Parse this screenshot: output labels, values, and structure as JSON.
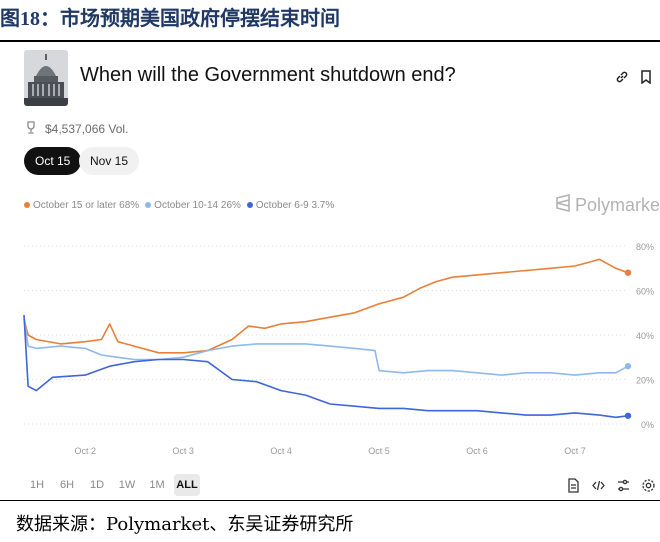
{
  "figure": {
    "title_prefix": "图",
    "title_number": "18",
    "title_rest": "：市场预期美国政府停摆结束时间"
  },
  "source": "数据来源：Polymarket、东吴证券研究所",
  "market": {
    "question": "When will the Government shutdown end?",
    "volume": "$4,537,066 Vol."
  },
  "date_buttons": [
    "Oct 15",
    "Nov 15"
  ],
  "brand": "Polymarket",
  "range_buttons": [
    "1H",
    "6H",
    "1D",
    "1W",
    "1M",
    "ALL"
  ],
  "icons": {
    "top": [
      "link-icon",
      "bookmark-icon"
    ],
    "tools": [
      "document-icon",
      "code-icon",
      "sliders-icon",
      "settings-icon"
    ],
    "volume": "trophy-icon"
  },
  "colors": {
    "orange": "#e8803a",
    "lightblue": "#8fb8ee",
    "blue": "#3e66d8"
  },
  "chart_data": {
    "type": "line",
    "x_ticks": [
      "Oct 2",
      "Oct 3",
      "Oct 4",
      "Oct 5",
      "Oct 6",
      "Oct 7"
    ],
    "xlim": [
      "Oct 1 09:00",
      "Oct 7 13:00"
    ],
    "y_ticks": [
      "0%",
      "20%",
      "40%",
      "60%",
      "80%"
    ],
    "ylim": [
      0,
      80
    ],
    "y_axis_side": "right",
    "legend_position": "top-left",
    "series": [
      {
        "name": "October 15 or later",
        "legend_text": "October 15 or later 68%",
        "color": "#e8803a",
        "points": [
          [
            "Oct 1 09:00",
            47
          ],
          [
            "Oct 1 10:00",
            40
          ],
          [
            "Oct 1 12:00",
            38
          ],
          [
            "Oct 1 18:00",
            36
          ],
          [
            "Oct 2 00:00",
            37
          ],
          [
            "Oct 2 04:00",
            38
          ],
          [
            "Oct 2 06:00",
            45
          ],
          [
            "Oct 2 08:00",
            37
          ],
          [
            "Oct 2 12:00",
            35
          ],
          [
            "Oct 2 18:00",
            32
          ],
          [
            "Oct 3 00:00",
            32
          ],
          [
            "Oct 3 06:00",
            33
          ],
          [
            "Oct 3 12:00",
            38
          ],
          [
            "Oct 3 16:00",
            44
          ],
          [
            "Oct 3 20:00",
            43
          ],
          [
            "Oct 4 00:00",
            45
          ],
          [
            "Oct 4 06:00",
            46
          ],
          [
            "Oct 4 12:00",
            48
          ],
          [
            "Oct 4 18:00",
            50
          ],
          [
            "Oct 5 00:00",
            54
          ],
          [
            "Oct 5 06:00",
            57
          ],
          [
            "Oct 5 10:00",
            61
          ],
          [
            "Oct 5 14:00",
            64
          ],
          [
            "Oct 5 18:00",
            66
          ],
          [
            "Oct 6 00:00",
            67
          ],
          [
            "Oct 6 06:00",
            68
          ],
          [
            "Oct 6 12:00",
            69
          ],
          [
            "Oct 6 18:00",
            70
          ],
          [
            "Oct 7 00:00",
            71
          ],
          [
            "Oct 7 04:00",
            73
          ],
          [
            "Oct 7 06:00",
            74
          ],
          [
            "Oct 7 08:00",
            72
          ],
          [
            "Oct 7 10:00",
            70
          ],
          [
            "Oct 7 13:00",
            68
          ]
        ]
      },
      {
        "name": "October 10-14",
        "legend_text": "October 10-14 26%",
        "color": "#8fb8ee",
        "points": [
          [
            "Oct 1 09:00",
            48
          ],
          [
            "Oct 1 10:00",
            35
          ],
          [
            "Oct 1 12:00",
            34
          ],
          [
            "Oct 1 18:00",
            35
          ],
          [
            "Oct 2 00:00",
            34
          ],
          [
            "Oct 2 04:00",
            31
          ],
          [
            "Oct 2 08:00",
            30
          ],
          [
            "Oct 2 12:00",
            29
          ],
          [
            "Oct 2 18:00",
            29
          ],
          [
            "Oct 3 00:00",
            30
          ],
          [
            "Oct 3 06:00",
            33
          ],
          [
            "Oct 3 12:00",
            35
          ],
          [
            "Oct 3 18:00",
            36
          ],
          [
            "Oct 4 00:00",
            36
          ],
          [
            "Oct 4 06:00",
            36
          ],
          [
            "Oct 4 12:00",
            35
          ],
          [
            "Oct 4 18:00",
            34
          ],
          [
            "Oct 4 23:00",
            33
          ],
          [
            "Oct 5 00:00",
            24
          ],
          [
            "Oct 5 06:00",
            23
          ],
          [
            "Oct 5 12:00",
            24
          ],
          [
            "Oct 5 18:00",
            24
          ],
          [
            "Oct 6 00:00",
            23
          ],
          [
            "Oct 6 06:00",
            22
          ],
          [
            "Oct 6 12:00",
            23
          ],
          [
            "Oct 6 18:00",
            23
          ],
          [
            "Oct 7 00:00",
            22
          ],
          [
            "Oct 7 06:00",
            23
          ],
          [
            "Oct 7 10:00",
            23
          ],
          [
            "Oct 7 13:00",
            26
          ]
        ]
      },
      {
        "name": "October 6-9",
        "legend_text": "October 6-9 3.7%",
        "color": "#3e66d8",
        "points": [
          [
            "Oct 1 09:00",
            49
          ],
          [
            "Oct 1 10:00",
            17
          ],
          [
            "Oct 1 12:00",
            15
          ],
          [
            "Oct 1 16:00",
            21
          ],
          [
            "Oct 2 00:00",
            22
          ],
          [
            "Oct 2 06:00",
            26
          ],
          [
            "Oct 2 12:00",
            28
          ],
          [
            "Oct 2 18:00",
            29
          ],
          [
            "Oct 3 00:00",
            29
          ],
          [
            "Oct 3 06:00",
            28
          ],
          [
            "Oct 3 12:00",
            20
          ],
          [
            "Oct 3 18:00",
            19
          ],
          [
            "Oct 4 00:00",
            15
          ],
          [
            "Oct 4 06:00",
            13
          ],
          [
            "Oct 4 12:00",
            9
          ],
          [
            "Oct 4 18:00",
            8
          ],
          [
            "Oct 5 00:00",
            7
          ],
          [
            "Oct 5 06:00",
            7
          ],
          [
            "Oct 5 12:00",
            6
          ],
          [
            "Oct 5 18:00",
            6
          ],
          [
            "Oct 6 00:00",
            6
          ],
          [
            "Oct 6 06:00",
            5
          ],
          [
            "Oct 6 12:00",
            4
          ],
          [
            "Oct 6 18:00",
            4
          ],
          [
            "Oct 7 00:00",
            5
          ],
          [
            "Oct 7 06:00",
            4
          ],
          [
            "Oct 7 10:00",
            3
          ],
          [
            "Oct 7 13:00",
            3.7
          ]
        ]
      }
    ]
  }
}
